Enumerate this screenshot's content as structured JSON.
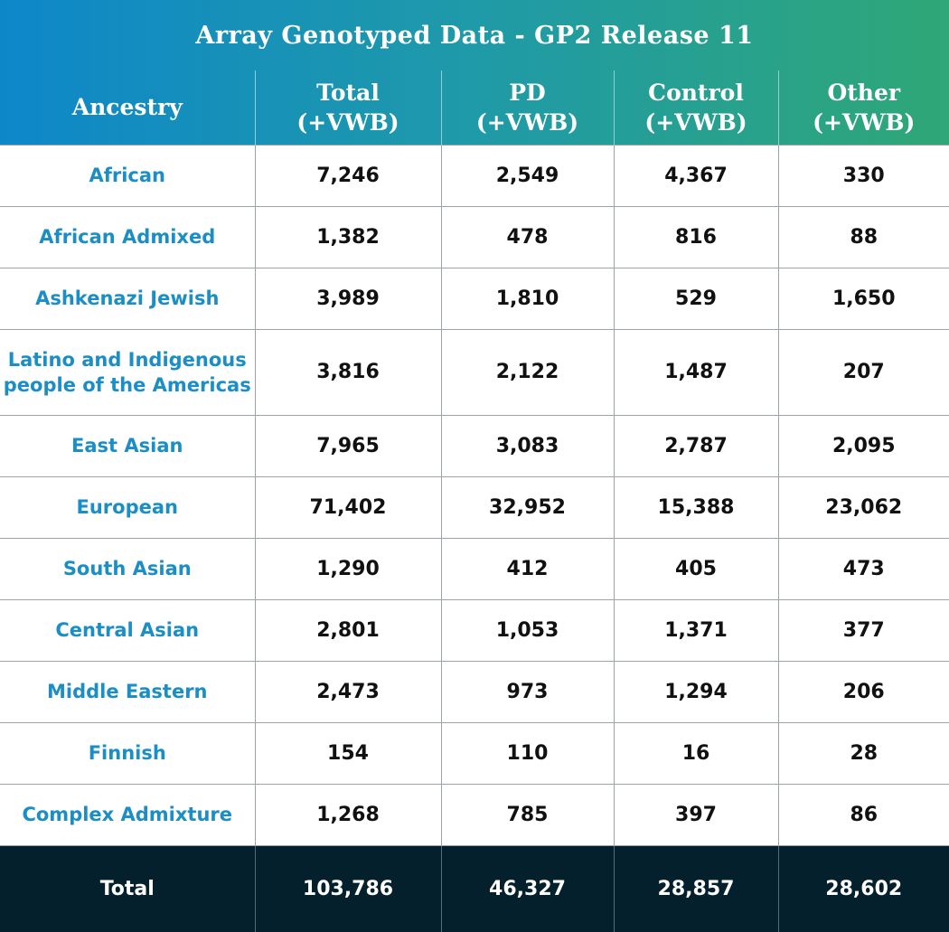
{
  "title": "Array Genotyped Data - GP2 Release 11",
  "headers": [
    {
      "line1": "Ancestry",
      "line2": ""
    },
    {
      "line1": "Total",
      "line2": "(+VWB)"
    },
    {
      "line1": "PD",
      "line2": "(+VWB)"
    },
    {
      "line1": "Control",
      "line2": "(+VWB)"
    },
    {
      "line1": "Other",
      "line2": "(+VWB)"
    }
  ],
  "rows": [
    {
      "ancestry": "African",
      "total": "7,246",
      "pd": "2,549",
      "control": "4,367",
      "other": "330"
    },
    {
      "ancestry": "African Admixed",
      "total": "1,382",
      "pd": "478",
      "control": "816",
      "other": "88"
    },
    {
      "ancestry": "Ashkenazi Jewish",
      "total": "3,989",
      "pd": "1,810",
      "control": "529",
      "other": "1,650"
    },
    {
      "ancestry": "Latino and Indigenous people of the Americas",
      "ancestry_line1": "Latino and Indigenous",
      "ancestry_line2": "people of the Americas",
      "total": "3,816",
      "pd": "2,122",
      "control": "1,487",
      "other": "207"
    },
    {
      "ancestry": "East Asian",
      "total": "7,965",
      "pd": "3,083",
      "control": "2,787",
      "other": "2,095"
    },
    {
      "ancestry": "European",
      "total": "71,402",
      "pd": "32,952",
      "control": "15,388",
      "other": "23,062"
    },
    {
      "ancestry": "South Asian",
      "total": "1,290",
      "pd": "412",
      "control": "405",
      "other": "473"
    },
    {
      "ancestry": "Central Asian",
      "total": "2,801",
      "pd": "1,053",
      "control": "1,371",
      "other": "377"
    },
    {
      "ancestry": "Middle Eastern",
      "total": "2,473",
      "pd": "973",
      "control": "1,294",
      "other": "206"
    },
    {
      "ancestry": "Finnish",
      "total": "154",
      "pd": "110",
      "control": "16",
      "other": "28"
    },
    {
      "ancestry": "Complex Admixture",
      "total": "1,268",
      "pd": "785",
      "control": "397",
      "other": "86"
    }
  ],
  "footer": {
    "label": "Total",
    "total": "103,786",
    "pd": "46,327",
    "control": "28,857",
    "other": "28,602"
  },
  "colors": {
    "accent_start": "#0e87c9",
    "accent_end": "#2fa777",
    "ancestry_text": "#1b8ec5",
    "footer_bg": "#03202c"
  }
}
